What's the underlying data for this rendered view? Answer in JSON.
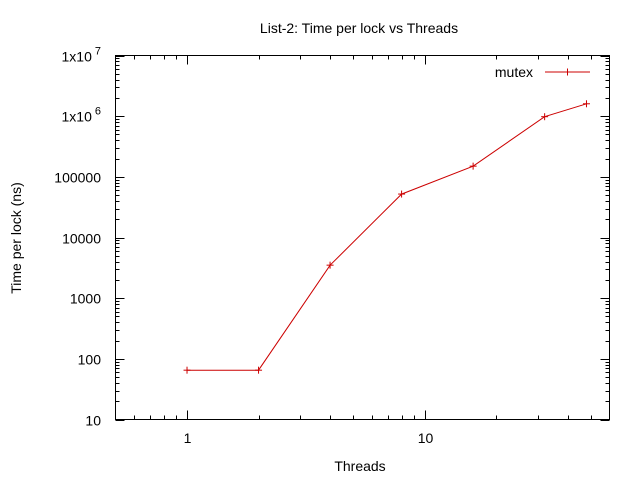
{
  "chart_data": {
    "type": "line",
    "title": "List-2: Time per lock vs Threads",
    "xlabel": "Threads",
    "ylabel": "Time per lock (ns)",
    "x_scale": "log",
    "y_scale": "log",
    "xlim": [
      0.5,
      60
    ],
    "ylim": [
      10,
      10000000
    ],
    "x_ticks": [
      {
        "value": 1,
        "label": "1"
      },
      {
        "value": 10,
        "label": "10"
      }
    ],
    "y_ticks": [
      {
        "value": 10,
        "base": "10",
        "exp": ""
      },
      {
        "value": 100,
        "base": "100",
        "exp": ""
      },
      {
        "value": 1000,
        "base": "1000",
        "exp": ""
      },
      {
        "value": 10000,
        "base": "10000",
        "exp": ""
      },
      {
        "value": 100000,
        "base": "100000",
        "exp": ""
      },
      {
        "value": 1000000,
        "base": "1x10",
        "exp": "6"
      },
      {
        "value": 10000000,
        "base": "1x10",
        "exp": "7"
      }
    ],
    "grid": false,
    "legend_position": "top-right",
    "series": [
      {
        "name": "mutex",
        "color": "#cc0000",
        "marker": "plus",
        "x": [
          1,
          2,
          4,
          8,
          16,
          32,
          48
        ],
        "y": [
          65,
          65,
          3500,
          52000,
          150000,
          980000,
          1600000
        ]
      }
    ]
  }
}
